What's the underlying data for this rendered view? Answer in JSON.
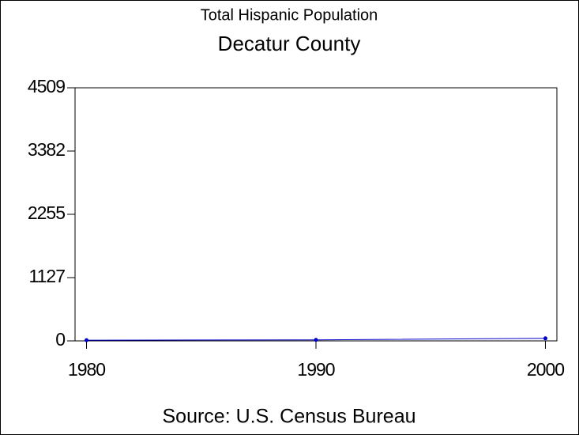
{
  "chart_data": {
    "type": "line",
    "title": "Total Hispanic Population",
    "subtitle": "Decatur County",
    "source": "Source: U.S. Census Bureau",
    "x": [
      1980,
      1990,
      2000
    ],
    "series": [
      {
        "name": "Total Hispanic Population",
        "color": "#0000cc",
        "values": [
          12,
          18,
          45
        ]
      }
    ],
    "xlim": [
      1979.5,
      2000.5
    ],
    "xticks": [
      1980,
      1990,
      2000
    ],
    "ylim": [
      0,
      4509
    ],
    "yticks": [
      0,
      1127,
      2255,
      3382,
      4509
    ],
    "grid": false
  }
}
